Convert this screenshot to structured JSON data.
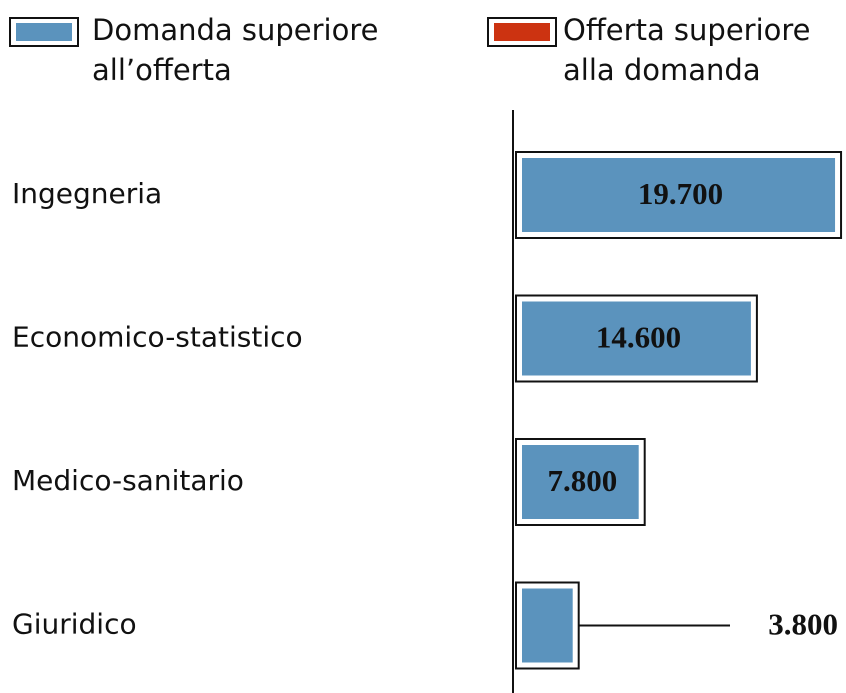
{
  "chart_data": {
    "type": "barh",
    "categories": [
      "Ingegneria",
      "Economico-statistico",
      "Medico-sanitario",
      "Giuridico"
    ],
    "series": [
      {
        "name": "Domanda superiore all’offerta",
        "color": "#5b93bd",
        "values": [
          19700,
          14600,
          7800,
          3800
        ],
        "value_labels": [
          "19.700",
          "14.600",
          "7.800",
          "3.800"
        ]
      },
      {
        "name": "Offerta superiore alla domanda",
        "color": "#cc3311",
        "values": [
          null,
          null,
          null,
          null
        ]
      }
    ],
    "xlim": [
      0,
      20000
    ]
  }
}
